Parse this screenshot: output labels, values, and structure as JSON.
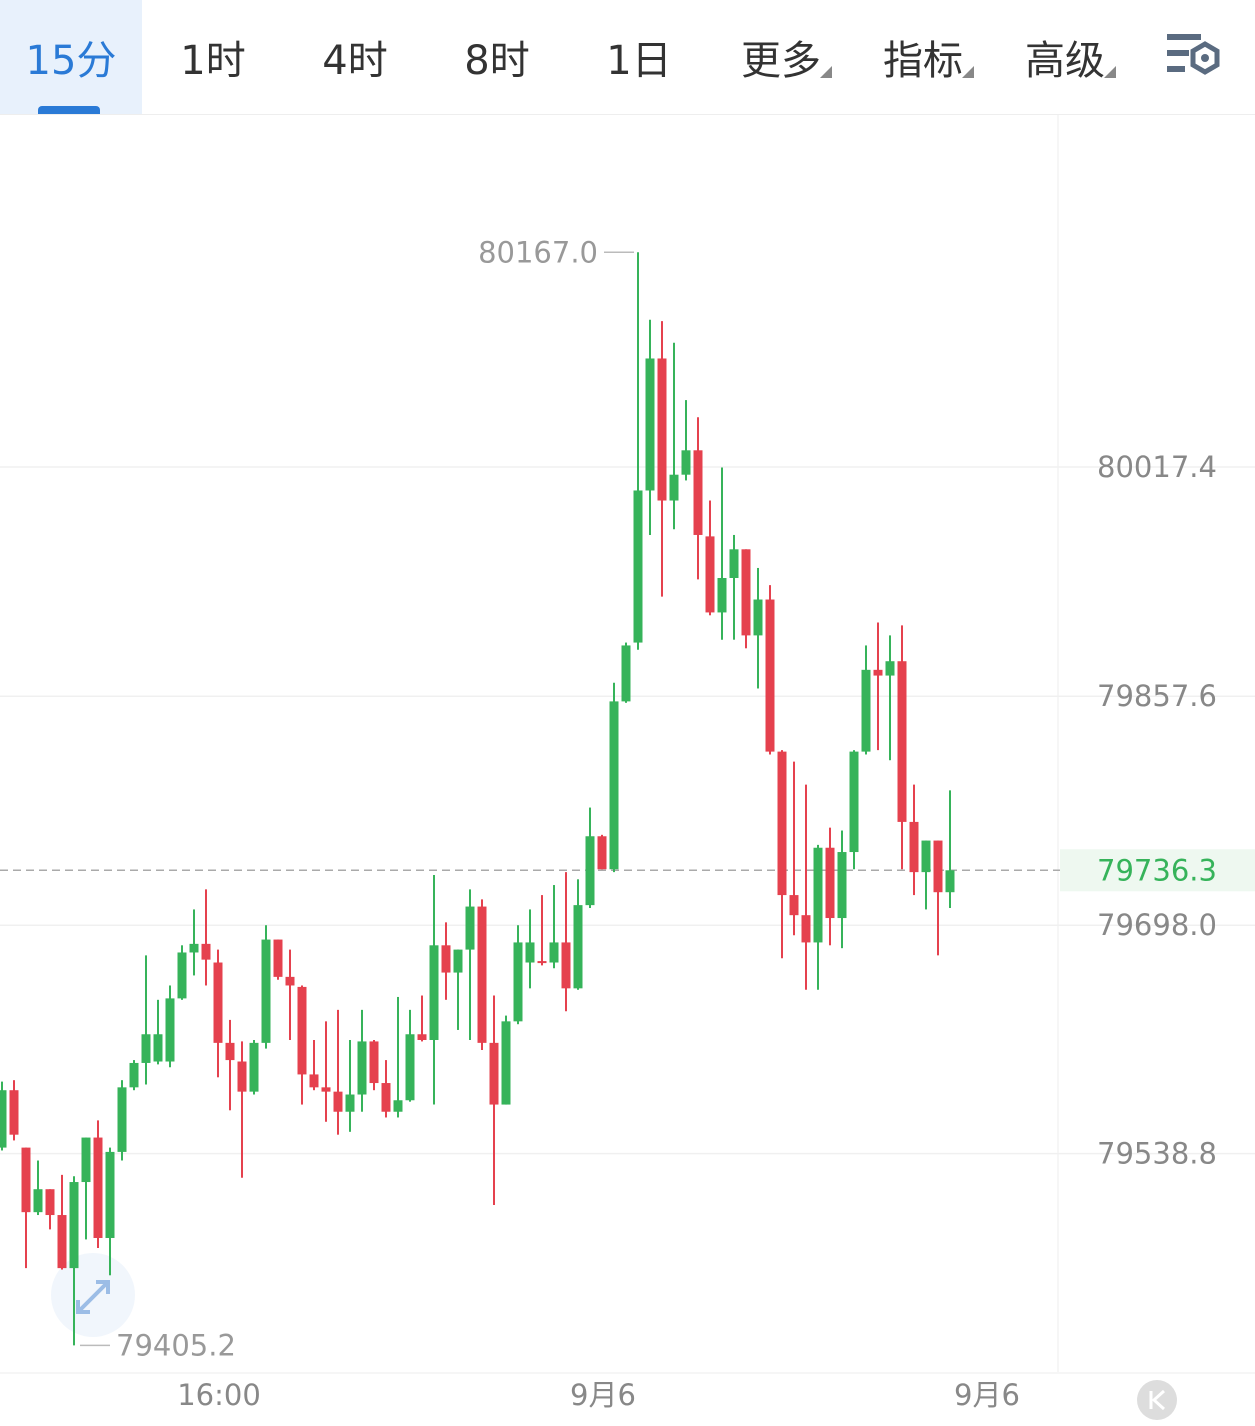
{
  "tabs": [
    "15分",
    "1时",
    "4时",
    "8时",
    "1日",
    "更多",
    "指标",
    "高级"
  ],
  "chart_data": {
    "type": "candlestick",
    "up_color": "#36b35a",
    "down_color": "#e5414e",
    "ylim": [
      79386.6,
      80262.7
    ],
    "yticks": [
      80017.4,
      79857.6,
      {
        "value": 79698,
        "label": "79698.0"
      },
      79538.8
    ],
    "grid": true,
    "xticks": [
      {
        "value": 18,
        "label": "16:00"
      },
      {
        "value": 50,
        "label": "9月6"
      },
      {
        "value": 82,
        "label": "9月6"
      }
    ],
    "max_marker": {
      "value": 80167,
      "label": "80167.0"
    },
    "min_marker": 79405.2,
    "last_price": 79736.3,
    "open": [
      79543,
      79583,
      79543,
      79498,
      79514,
      79496,
      79459,
      79519,
      79550,
      79480,
      79540,
      79585,
      79602,
      79603,
      79603,
      79647,
      79679,
      79685,
      79672,
      79616,
      79603,
      79582,
      79616,
      79688,
      79662,
      79655,
      79594,
      79585,
      79582,
      79568,
      79580,
      79617,
      79588,
      79568,
      79576,
      79622,
      79618,
      79684,
      79665,
      79681,
      79711,
      79616,
      79573,
      79631,
      79672,
      79673,
      79672,
      79686,
      79654,
      79712,
      79760,
      79737,
      79854,
      79895,
      80001,
      80093,
      79994,
      80012,
      80029,
      79969,
      79916,
      79940,
      79960,
      79900,
      79925,
      79819,
      79719,
      79705,
      79686,
      79752,
      79703,
      79749,
      79819,
      79876,
      79872,
      79882,
      79770,
      79735,
      79757,
      79721
    ],
    "high": [
      79589,
      79590,
      79543,
      79534,
      79514,
      79524,
      79523,
      79550,
      79562,
      79543,
      79590,
      79604,
      79677,
      79646,
      79656,
      79684,
      79709,
      79723,
      79681,
      79632,
      79617,
      79618,
      79698,
      79688,
      79681,
      79656,
      79618,
      79631,
      79639,
      79618,
      79639,
      79618,
      79604,
      79648,
      79639,
      79649,
      79733,
      79700,
      79681,
      79723,
      79716,
      79649,
      79635,
      79698,
      79709,
      79719,
      79726,
      79735,
      79730,
      79780,
      79761,
      79867,
      79895,
      80167,
      80120,
      80119,
      80104,
      80064,
      80052,
      79994,
      80017,
      79970,
      79960,
      79947,
      79935,
      79820,
      79812,
      79796,
      79754,
      79766,
      79764,
      79820,
      79893,
      79909,
      79900,
      79907,
      79796,
      79757,
      79757,
      79792
    ],
    "low": [
      79541,
      79548,
      79459,
      79496,
      79486,
      79458,
      79405.2,
      79479,
      79473,
      79454,
      79534,
      79583,
      79587,
      79601,
      79599,
      79646,
      79663,
      79656,
      79592,
      79569,
      79522,
      79580,
      79612,
      79660,
      79618,
      79573,
      79583,
      79561,
      79552,
      79554,
      79568,
      79583,
      79564,
      79564,
      79575,
      79617,
      79573,
      79646,
      79625,
      79618,
      79611,
      79503,
      79573,
      79629,
      79654,
      79670,
      79668,
      79638,
      79653,
      79710,
      79737,
      79735,
      79853,
      79890,
      79970,
      79927,
      79974,
      80008,
      79939,
      79914,
      79897,
      79897,
      79891,
      79863,
      79817,
      79675,
      79691,
      79653,
      79653,
      79684,
      79682,
      79737,
      79817,
      79820,
      79813,
      79737,
      79719,
      79709,
      79677,
      79710
    ],
    "close": [
      79583,
      79552,
      79498,
      79514,
      79496,
      79459,
      79519,
      79550,
      79480,
      79540,
      79585,
      79602,
      79622,
      79622,
      79647,
      79679,
      79685,
      79674,
      79616,
      79604,
      79582,
      79616,
      79688,
      79662,
      79656,
      79594,
      79585,
      79582,
      79568,
      79580,
      79617,
      79588,
      79568,
      79576,
      79622,
      79618,
      79684,
      79665,
      79681,
      79711,
      79616,
      79573,
      79631,
      79686,
      79686,
      79672,
      79686,
      79654,
      79712,
      79760,
      79737,
      79854,
      79893,
      80001,
      80093,
      79994,
      80012,
      80029,
      79970,
      79916,
      79940,
      79960,
      79900,
      79925,
      79819,
      79719,
      79705,
      79686,
      79752,
      79703,
      79749,
      79819,
      79876,
      79872,
      79882,
      79770,
      79735,
      79757,
      79721,
      79736.3
    ]
  }
}
